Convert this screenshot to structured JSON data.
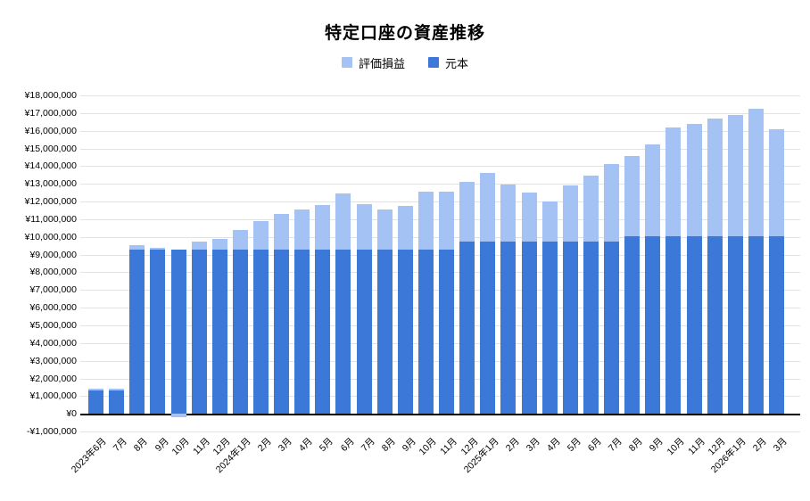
{
  "title": "特定口座の資産推移",
  "legend": {
    "gain_label": "評価損益",
    "principal_label": "元本"
  },
  "colors": {
    "principal": "#3c78d8",
    "gain": "#a4c2f4",
    "gridline": "#e2e2e2",
    "zero_line": "#000000",
    "text": "#000000",
    "background": "#ffffff"
  },
  "chart_data": {
    "type": "bar",
    "stacked": true,
    "title": "特定口座の資産推移",
    "xlabel": "",
    "ylabel": "",
    "grid": true,
    "legend_position": "top",
    "y_axis": {
      "min": -1000000,
      "max": 18000000,
      "step": 1000000,
      "tick_format": "¥#,###"
    },
    "categories": [
      "2023年6月",
      "7月",
      "8月",
      "9月",
      "10月",
      "11月",
      "12月",
      "2024年1月",
      "2月",
      "3月",
      "4月",
      "5月",
      "6月",
      "7月",
      "8月",
      "9月",
      "10月",
      "11月",
      "12月",
      "2025年1月",
      "2月",
      "3月",
      "4月",
      "5月",
      "6月",
      "7月",
      "8月",
      "9月",
      "10月",
      "11月",
      "12月",
      "2026年1月",
      "2月",
      "3月"
    ],
    "series": [
      {
        "name": "元本",
        "color": "#3c78d8",
        "values": [
          1300000,
          1300000,
          9300000,
          9300000,
          9300000,
          9300000,
          9300000,
          9300000,
          9300000,
          9300000,
          9300000,
          9300000,
          9300000,
          9300000,
          9300000,
          9300000,
          9300000,
          9300000,
          9750000,
          9750000,
          9750000,
          9750000,
          9750000,
          9750000,
          9750000,
          9750000,
          10050000,
          10050000,
          10050000,
          10050000,
          10050000,
          10050000,
          10050000,
          10050000
        ]
      },
      {
        "name": "評価損益",
        "color": "#a4c2f4",
        "values": [
          100000,
          100000,
          250000,
          100000,
          -200000,
          450000,
          600000,
          1100000,
          1600000,
          2000000,
          2250000,
          2500000,
          3150000,
          2550000,
          2250000,
          2450000,
          3250000,
          3250000,
          3350000,
          3850000,
          3200000,
          2750000,
          2250000,
          3150000,
          3700000,
          4350000,
          4550000,
          5200000,
          6150000,
          6350000,
          6650000,
          6850000,
          7200000,
          6050000
        ]
      }
    ]
  }
}
